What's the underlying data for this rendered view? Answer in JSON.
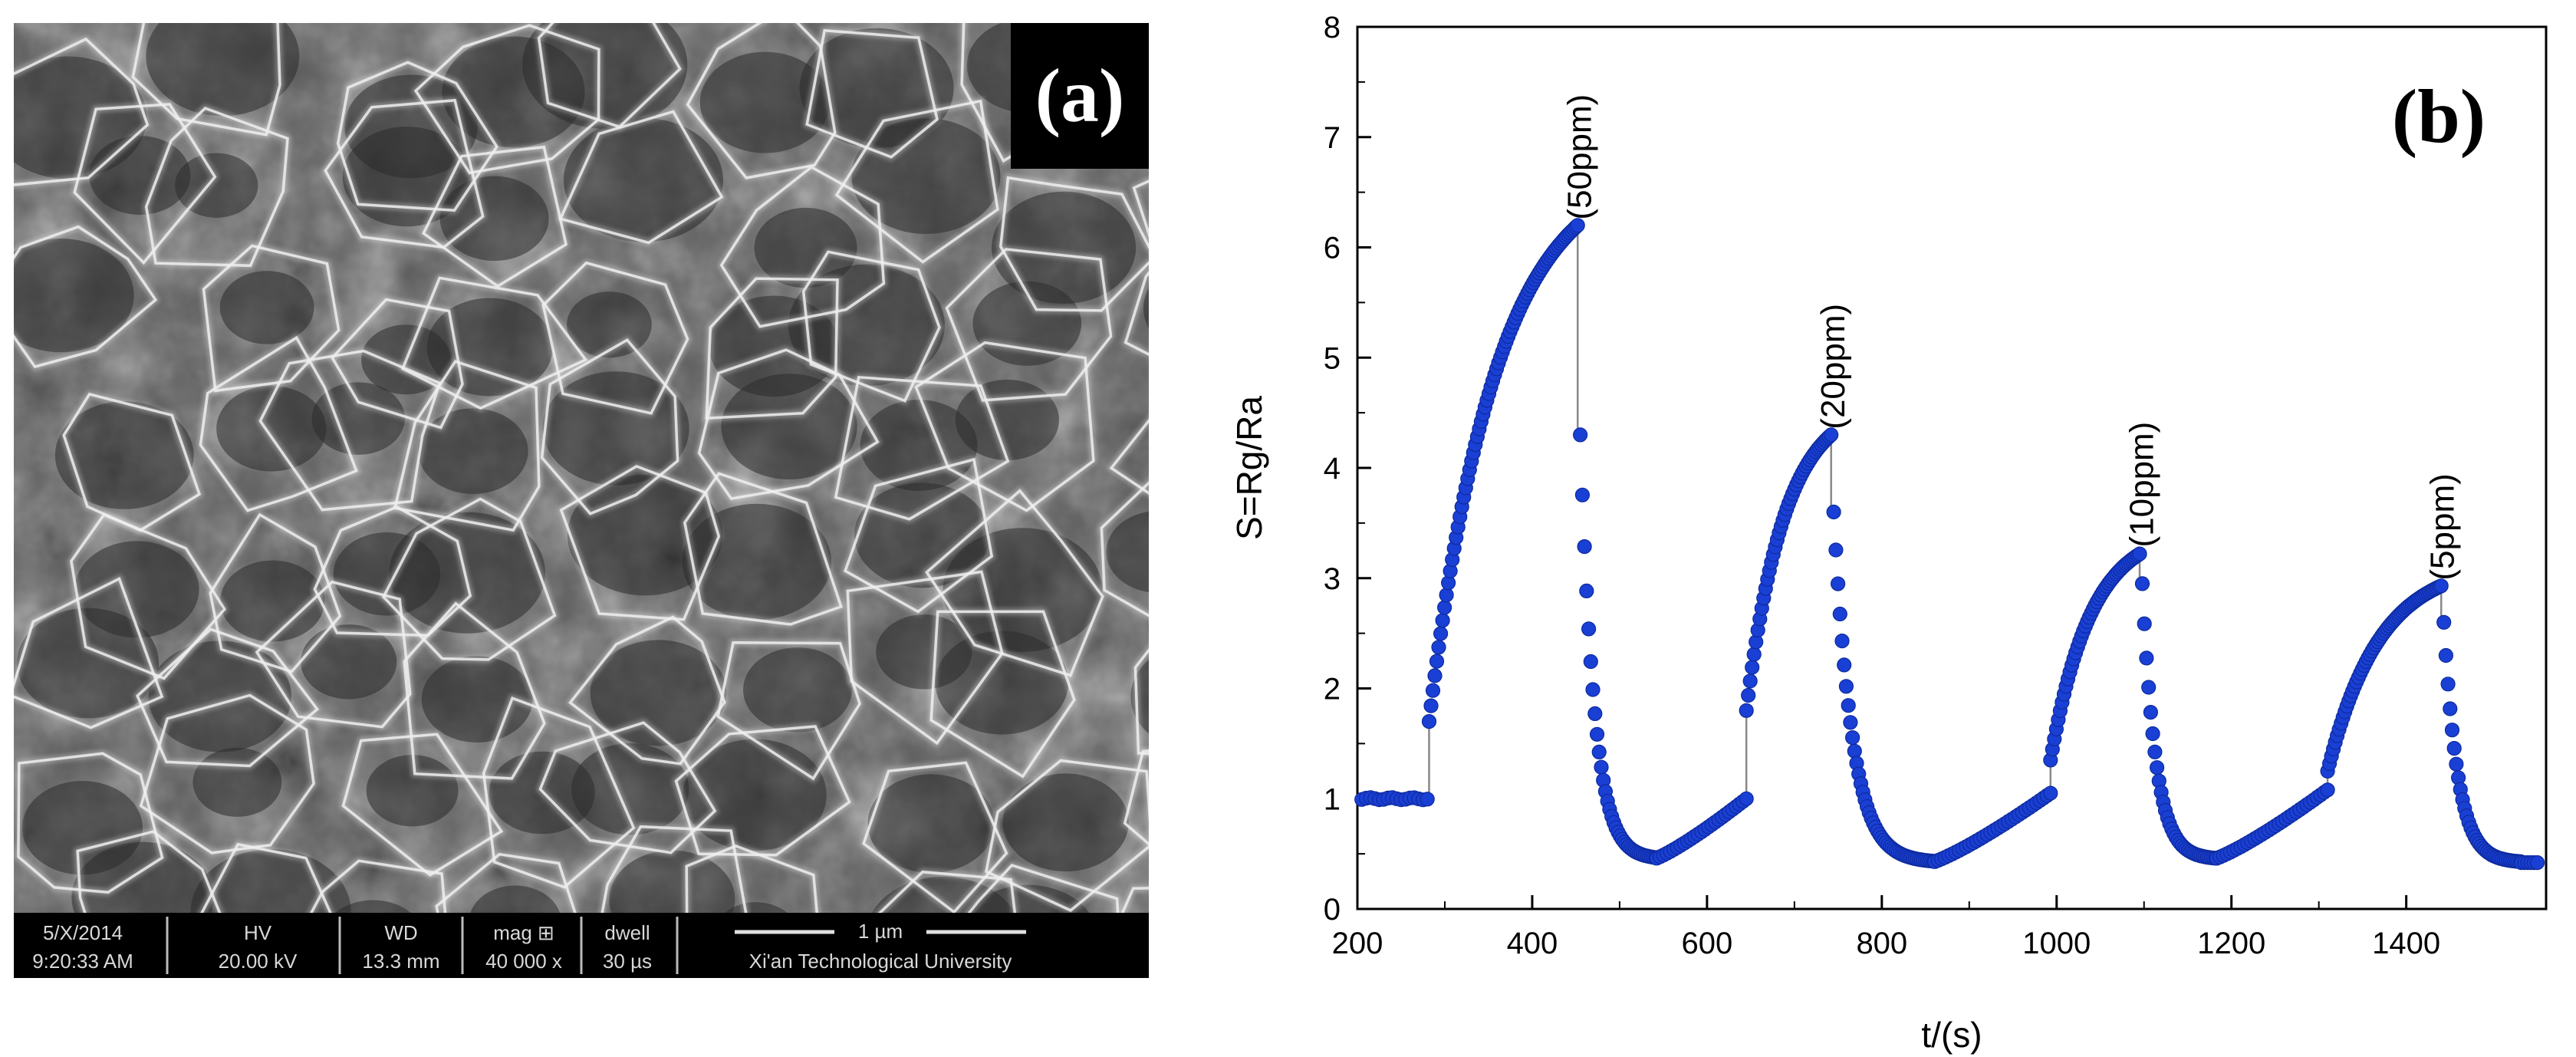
{
  "panel_a": {
    "label": "(a)",
    "info_bar": {
      "date": "5/X/2014",
      "time": "9:20:33 AM",
      "hv_label": "HV",
      "hv_value": "20.00 kV",
      "wd_label": "WD",
      "wd_value": "13.3 mm",
      "mag_label": "mag ⊞",
      "mag_value": "40 000 x",
      "dwell_label": "dwell",
      "dwell_value": "30 µs",
      "scale_label": "1 µm",
      "institution": "Xi'an Technological University"
    }
  },
  "panel_b": {
    "label": "(b)",
    "chart_data": {
      "type": "scatter",
      "xlabel": "t/(s)",
      "ylabel": "S=Rg/Ra",
      "xlim": [
        200,
        1560
      ],
      "ylim": [
        0,
        8
      ],
      "xticks": [
        200,
        400,
        600,
        800,
        1000,
        1200,
        1400
      ],
      "yticks": [
        0,
        1,
        2,
        3,
        4,
        5,
        6,
        7,
        8
      ],
      "grid": false,
      "marker_color": "#1a3fd4",
      "annotations": [
        {
          "text": "(50ppm)",
          "x": 455,
          "y": 6.25
        },
        {
          "text": "(20ppm)",
          "x": 745,
          "y": 4.35
        },
        {
          "text": "(10ppm)",
          "x": 1098,
          "y": 3.28
        },
        {
          "text": "(5ppm)",
          "x": 1442,
          "y": 2.98
        }
      ],
      "cycles": [
        {
          "concentration": "50ppm",
          "on_time": 282,
          "off_time": 452,
          "end_time": 560,
          "baseline": 1.0,
          "jump": 1.7,
          "peak": 6.2,
          "off_first": 4.3,
          "min": 0.45
        },
        {
          "concentration": "20ppm",
          "on_time": 645,
          "off_time": 742,
          "end_time": 885,
          "baseline": 1.0,
          "jump": 1.8,
          "peak": 4.3,
          "off_first": 3.6,
          "min": 0.42
        },
        {
          "concentration": "10ppm",
          "on_time": 993,
          "off_time": 1095,
          "end_time": 1200,
          "baseline": 1.05,
          "jump": 1.35,
          "peak": 3.22,
          "off_first": 2.95,
          "min": 0.45
        },
        {
          "concentration": "5ppm",
          "on_time": 1310,
          "off_time": 1440,
          "end_time": 1550,
          "baseline": 1.08,
          "jump": 1.25,
          "peak": 2.93,
          "off_first": 2.6,
          "min": 0.42
        }
      ],
      "initial_baseline": {
        "from": 205,
        "to": 282,
        "value": 1.0
      }
    }
  }
}
